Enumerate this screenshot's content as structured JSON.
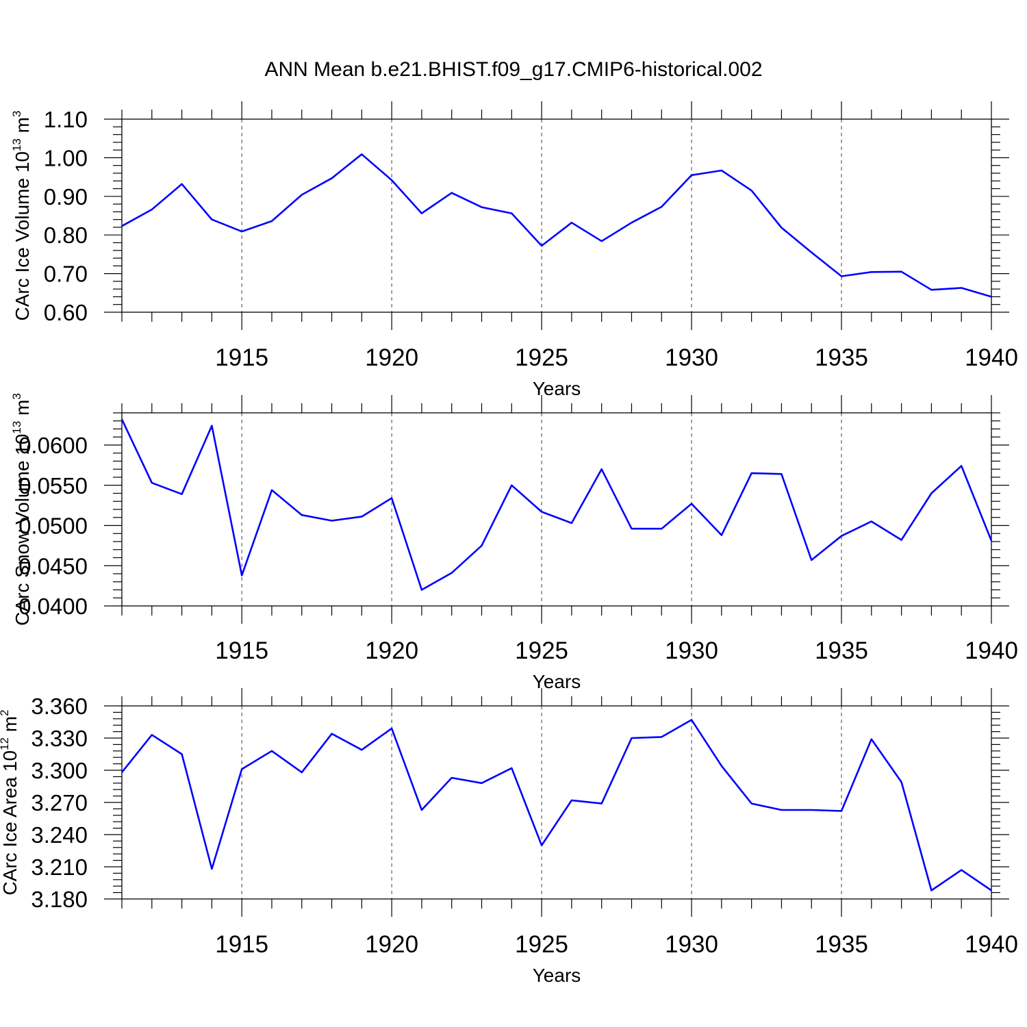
{
  "title": "ANN Mean b.e21.BHIST.f09_g17.CMIP6-historical.002",
  "chart_data": [
    {
      "type": "line",
      "name": "panel-ice-volume",
      "ylabel": "CArc Ice Volume 10",
      "ylabel_exp": "13",
      "ylabel_unit": " m",
      "ylabel_unit_exp": "3",
      "xlabel": "Years",
      "xlim": [
        1911,
        1940
      ],
      "ylim": [
        0.6,
        1.1
      ],
      "yticks": [
        0.6,
        0.7,
        0.8,
        0.9,
        1.0,
        1.1
      ],
      "yticklabels": [
        "0.60",
        "0.70",
        "0.80",
        "0.90",
        "1.00",
        "1.10"
      ],
      "xticks": [
        1915,
        1920,
        1925,
        1930,
        1935,
        1940
      ],
      "xticklabels": [
        "1915",
        "1920",
        "1925",
        "1930",
        "1935",
        "1940"
      ],
      "x": [
        1911,
        1912,
        1913,
        1914,
        1915,
        1916,
        1917,
        1918,
        1919,
        1920,
        1921,
        1922,
        1923,
        1924,
        1925,
        1926,
        1927,
        1928,
        1929,
        1930,
        1931,
        1932,
        1933,
        1934,
        1935,
        1936,
        1937,
        1938,
        1939,
        1940
      ],
      "series": [
        {
          "name": "CArc Ice Volume",
          "color": "#0000ff",
          "values": [
            0.823,
            0.866,
            0.932,
            0.84,
            0.809,
            0.836,
            0.904,
            0.947,
            1.009,
            0.942,
            0.856,
            0.909,
            0.872,
            0.856,
            0.772,
            0.832,
            0.784,
            0.832,
            0.873,
            0.955,
            0.967,
            0.915,
            0.819,
            0.755,
            0.693,
            0.704,
            0.705,
            0.658,
            0.663,
            0.64
          ]
        }
      ]
    },
    {
      "type": "line",
      "name": "panel-snow-volume",
      "ylabel": "CArc Snow Volume 10",
      "ylabel_exp": "13",
      "ylabel_unit": " m",
      "ylabel_unit_exp": "3",
      "xlabel": "Years",
      "xlim": [
        1911,
        1940
      ],
      "ylim": [
        0.04,
        0.064
      ],
      "yticks": [
        0.04,
        0.045,
        0.05,
        0.055,
        0.06
      ],
      "yticklabels": [
        "0.0400",
        "0.0450",
        "0.0500",
        "0.0550",
        "0.0600"
      ],
      "xticks": [
        1915,
        1920,
        1925,
        1930,
        1935,
        1940
      ],
      "xticklabels": [
        "1915",
        "1920",
        "1925",
        "1930",
        "1935",
        "1940"
      ],
      "x": [
        1911,
        1912,
        1913,
        1914,
        1915,
        1916,
        1917,
        1918,
        1919,
        1920,
        1921,
        1922,
        1923,
        1924,
        1925,
        1926,
        1927,
        1928,
        1929,
        1930,
        1931,
        1932,
        1933,
        1934,
        1935,
        1936,
        1937,
        1938,
        1939,
        1940
      ],
      "series": [
        {
          "name": "CArc Snow Volume",
          "color": "#0000ff",
          "values": [
            0.0632,
            0.0553,
            0.0539,
            0.0624,
            0.0438,
            0.0544,
            0.0513,
            0.0506,
            0.0511,
            0.0534,
            0.042,
            0.0441,
            0.0475,
            0.055,
            0.0517,
            0.0503,
            0.057,
            0.0496,
            0.0496,
            0.0527,
            0.0488,
            0.0565,
            0.0564,
            0.0457,
            0.0487,
            0.0505,
            0.0482,
            0.054,
            0.0574,
            0.0481
          ]
        }
      ]
    },
    {
      "type": "line",
      "name": "panel-ice-area",
      "ylabel": "CArc Ice Area 10",
      "ylabel_exp": "12",
      "ylabel_unit": " m",
      "ylabel_unit_exp": "2",
      "xlabel": "Years",
      "xlim": [
        1911,
        1940
      ],
      "ylim": [
        3.18,
        3.36
      ],
      "yticks": [
        3.18,
        3.21,
        3.24,
        3.27,
        3.3,
        3.33,
        3.36
      ],
      "yticklabels": [
        "3.180",
        "3.210",
        "3.240",
        "3.270",
        "3.300",
        "3.330",
        "3.360"
      ],
      "xticks": [
        1915,
        1920,
        1925,
        1930,
        1935,
        1940
      ],
      "xticklabels": [
        "1915",
        "1920",
        "1925",
        "1930",
        "1935",
        "1940"
      ],
      "x": [
        1911,
        1912,
        1913,
        1914,
        1915,
        1916,
        1917,
        1918,
        1919,
        1920,
        1921,
        1922,
        1923,
        1924,
        1925,
        1926,
        1927,
        1928,
        1929,
        1930,
        1931,
        1932,
        1933,
        1934,
        1935,
        1936,
        1937,
        1938,
        1939,
        1940
      ],
      "series": [
        {
          "name": "CArc Ice Area",
          "color": "#0000ff",
          "values": [
            3.298,
            3.333,
            3.315,
            3.208,
            3.301,
            3.318,
            3.298,
            3.334,
            3.319,
            3.339,
            3.263,
            3.293,
            3.288,
            3.302,
            3.23,
            3.272,
            3.269,
            3.33,
            3.331,
            3.347,
            3.304,
            3.269,
            3.263,
            3.263,
            3.262,
            3.329,
            3.289,
            3.188,
            3.207,
            3.188
          ]
        }
      ]
    }
  ]
}
